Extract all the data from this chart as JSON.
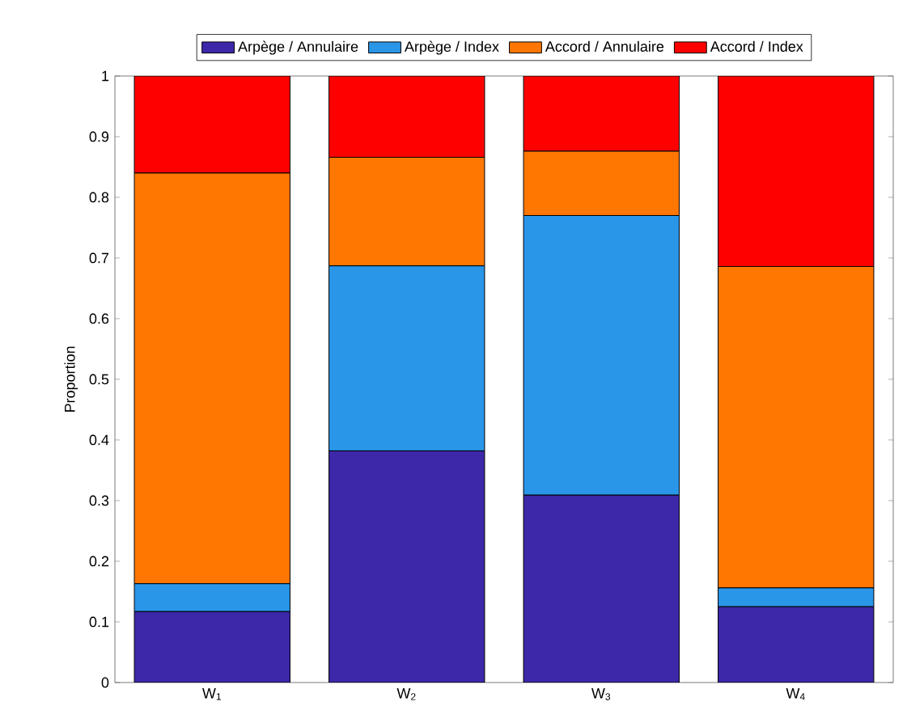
{
  "chart_data": {
    "type": "bar",
    "stacked": true,
    "ylabel": "Proportion",
    "categories": [
      "W$_{1}$",
      "W$_{2}$",
      "W$_{3}$",
      "W$_{4}$"
    ],
    "series": [
      {
        "name": "Arpège / Annulaire",
        "color": "#3c28a8",
        "values": [
          0.117,
          0.382,
          0.309,
          0.125
        ]
      },
      {
        "name": "Arpège / Index",
        "color": "#2a96e8",
        "values": [
          0.046,
          0.305,
          0.461,
          0.031
        ]
      },
      {
        "name": "Accord / Annulaire",
        "color": "#ff7700",
        "values": [
          0.677,
          0.179,
          0.106,
          0.53
        ]
      },
      {
        "name": "Accord / Index",
        "color": "#ff0000",
        "values": [
          0.16,
          0.134,
          0.124,
          0.314
        ]
      }
    ],
    "ylim": [
      0,
      1
    ],
    "yticks": [
      0,
      0.1,
      0.2,
      0.3,
      0.4,
      0.5,
      0.6,
      0.7,
      0.8,
      0.9,
      1
    ],
    "legend": "top",
    "grid": false
  }
}
